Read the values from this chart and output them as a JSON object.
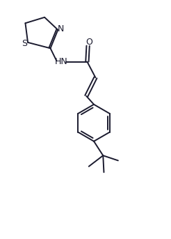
{
  "bg_color": "#ffffff",
  "line_color": "#1a1a2e",
  "line_width": 1.4,
  "font_size_label": 8.5,
  "figsize": [
    2.46,
    3.43
  ],
  "dpi": 100,
  "xlim": [
    0,
    10
  ],
  "ylim": [
    0,
    14
  ]
}
